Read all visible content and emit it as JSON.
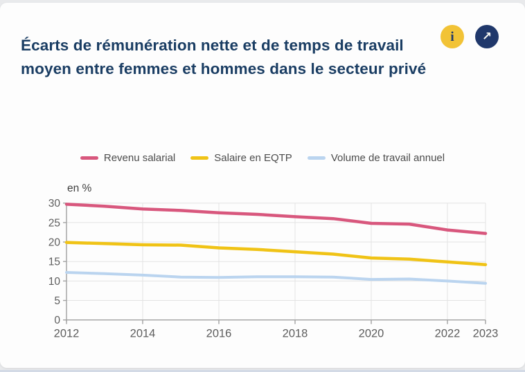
{
  "header": {
    "title": "Écarts de rémunération nette et de temps de travail moyen entre femmes et hommes dans le secteur privé",
    "info_icon": "i",
    "open_icon": "↗"
  },
  "colors": {
    "title_navy": "#1a3d63",
    "button_yellow": "#f2c336",
    "button_navy": "#20386b",
    "grid": "#e3e3e3",
    "axis": "#a0a0a0",
    "tick_label": "#5d5d5d",
    "unit_label": "#3f3f3f"
  },
  "chart_data": {
    "type": "line",
    "title": "Écarts de rémunération nette et de temps de travail moyen entre femmes et hommes dans le secteur privé",
    "unit_label": "en %",
    "x": [
      2012,
      2013,
      2014,
      2015,
      2016,
      2017,
      2018,
      2019,
      2020,
      2021,
      2022,
      2023
    ],
    "series": [
      {
        "name": "Revenu salarial",
        "color": "#d8577d",
        "stroke_width": 4.5,
        "values": [
          29.7,
          29.2,
          28.5,
          28.1,
          27.5,
          27.1,
          26.5,
          26.0,
          24.8,
          24.6,
          23.1,
          22.2
        ]
      },
      {
        "name": "Salaire en EQTP",
        "color": "#f0c316",
        "stroke_width": 4.5,
        "values": [
          19.9,
          19.6,
          19.3,
          19.2,
          18.5,
          18.1,
          17.5,
          16.9,
          15.9,
          15.6,
          14.9,
          14.2
        ]
      },
      {
        "name": "Volume de travail annuel",
        "color": "#bad4ef",
        "stroke_width": 4,
        "values": [
          12.2,
          11.9,
          11.5,
          11.0,
          10.9,
          11.1,
          11.1,
          11.0,
          10.4,
          10.5,
          10.0,
          9.4
        ]
      }
    ],
    "ylim": [
      0,
      30
    ],
    "yticks": [
      0,
      5,
      10,
      15,
      20,
      25,
      30
    ],
    "xticks": [
      2012,
      2014,
      2016,
      2018,
      2020,
      2022,
      2023
    ],
    "grid": true,
    "legend_position": "top-center"
  }
}
